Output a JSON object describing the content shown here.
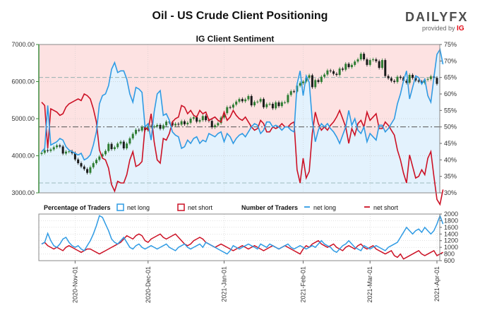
{
  "header": {
    "title": "Oil - US Crude Client Positioning",
    "logo_text_a": "DAILY",
    "logo_text_b": "FX",
    "logo_sub": "provided by",
    "logo_ig": "IG"
  },
  "colors": {
    "long": "#2f9be4",
    "short": "#cc1125",
    "candle_up": "#2e7d32",
    "candle_down": "#1a1a1a",
    "bg_short": "#fde2e2",
    "bg_long": "#e3f2fd",
    "left_axis": "#3d8b3d"
  },
  "chart_data": [
    {
      "type": "line",
      "title": "IG Client Sentiment",
      "x_ticks": [
        "2020-Nov-01",
        "2020-Dec-01",
        "2021-Jan-01",
        "2021-Feb-01",
        "2021-Mar-01",
        "2021-Apr-01"
      ],
      "y_left_ticks": [
        "3000.00",
        "4000.00",
        "5000.00",
        "6000.00",
        "7000.00"
      ],
      "y_left_range": [
        3000,
        7000
      ],
      "y_right_ticks": [
        "30%",
        "35%",
        "40%",
        "45%",
        "50%",
        "55%",
        "60%",
        "65%",
        "70%",
        "75%"
      ],
      "y_right_range": [
        30,
        75
      ],
      "price_candles": {
        "name": "Oil - US Crude",
        "close": [
          4080,
          4150,
          4130,
          4170,
          4230,
          4280,
          4250,
          4060,
          4110,
          4120,
          4070,
          3900,
          3800,
          3710,
          3640,
          3540,
          3690,
          3800,
          3890,
          3980,
          4040,
          4130,
          4320,
          4180,
          4230,
          4330,
          4380,
          4200,
          4330,
          4470,
          4590,
          4700,
          4680,
          4780,
          4690,
          4800,
          4780,
          4790,
          4830,
          4730,
          4820,
          4920,
          4900,
          4820,
          4860,
          4840,
          4930,
          4850,
          4890,
          5000,
          5040,
          4920,
          4960,
          5070,
          4960,
          4940,
          4770,
          4820,
          4880,
          5030,
          5150,
          5310,
          5300,
          5380,
          5460,
          5530,
          5470,
          5520,
          5610,
          5360,
          5450,
          5460,
          5530,
          5310,
          5390,
          5400,
          5280,
          5440,
          5340,
          5440,
          5440,
          5640,
          5740,
          5730,
          5890,
          5960,
          6000,
          6100,
          6170,
          5850,
          6040,
          5990,
          6130,
          6190,
          6300,
          6280,
          6210,
          6180,
          6350,
          6320,
          6480,
          6390,
          6450,
          6540,
          6600,
          6750,
          6600,
          6450,
          6580,
          6600,
          6550,
          6370,
          6580,
          6150,
          6090,
          6020,
          5990,
          6130,
          6100,
          6020,
          5970,
          6180,
          6100,
          6030,
          6000,
          5970,
          6050,
          6070,
          6140,
          6100,
          5940
        ]
      },
      "net_long_pct": [
        42.5,
        43.5,
        56.5,
        44.5,
        45,
        45.5,
        46.5,
        46,
        44,
        43,
        42.5,
        42,
        41.5,
        42,
        40,
        40.5,
        41.5,
        44.5,
        48.5,
        57,
        59.5,
        60,
        62.5,
        67.5,
        69.5,
        66.5,
        67,
        67,
        64.5,
        60,
        57.5,
        62,
        61.5,
        60.5,
        50,
        51,
        46,
        54.5,
        60,
        61,
        53.5,
        54,
        52,
        48.5,
        47.5,
        47,
        43.5,
        44,
        46,
        45,
        46.5,
        47,
        45,
        46,
        45.5,
        48,
        47.5,
        47,
        48,
        48.5,
        45.5,
        48,
        47,
        45,
        46.5,
        47.5,
        48,
        47,
        48.5,
        50,
        51,
        50.5,
        48,
        49,
        51.5,
        51.5,
        50,
        50.5,
        50,
        49,
        50,
        50,
        49,
        48.5,
        63,
        67,
        59.5,
        65.5,
        63.5,
        52,
        45.5,
        49,
        51,
        50,
        51,
        49.5,
        48.5,
        47,
        45,
        47.5,
        50,
        55,
        50.5,
        52.5,
        49,
        48,
        50,
        45.5,
        48,
        47,
        46,
        50.5,
        50.5,
        48.5,
        49.5,
        51,
        52.5,
        57,
        60,
        64,
        67,
        58.5,
        62,
        65.5,
        65,
        63,
        64.5,
        59.5,
        57.5,
        65,
        72,
        73.5,
        69
      ],
      "net_short_pct": [
        57.5,
        56.5,
        43.5,
        55.5,
        55,
        54.5,
        53.5,
        54,
        56,
        57,
        57.5,
        58,
        58.5,
        58,
        60,
        59.5,
        58.5,
        55.5,
        51.5,
        43,
        40.5,
        40,
        37.5,
        32.5,
        30.5,
        33.5,
        33,
        33,
        35.5,
        40,
        42.5,
        38,
        38.5,
        39.5,
        50,
        49,
        54,
        45.5,
        40,
        39,
        46.5,
        46,
        48,
        51.5,
        52.5,
        53,
        56.5,
        56,
        54,
        55,
        53.5,
        53,
        55,
        54,
        54.5,
        52,
        52.5,
        53,
        52,
        51.5,
        54.5,
        52,
        53,
        55,
        53.5,
        52.5,
        52,
        53,
        51.5,
        50,
        49,
        49.5,
        52,
        51,
        48.5,
        48.5,
        50,
        49.5,
        50,
        51,
        50,
        50,
        51,
        51.5,
        37,
        33,
        40.5,
        34.5,
        36.5,
        48,
        54.5,
        51,
        49,
        50,
        49,
        50.5,
        51.5,
        53,
        55,
        52.5,
        50,
        45,
        49.5,
        47.5,
        51,
        52,
        50,
        54.5,
        52,
        53,
        54,
        49.5,
        49.5,
        51.5,
        50.5,
        49,
        47.5,
        43,
        40,
        36,
        33,
        41.5,
        38,
        34.5,
        35,
        37,
        35.5,
        40.5,
        42.5,
        35,
        28,
        26.5,
        31
      ]
    },
    {
      "type": "line",
      "legend_pct_title": "Percentage of Traders",
      "legend_num_title": "Number of Traders",
      "legend_long": "net long",
      "legend_short": "net short",
      "y_right_ticks": [
        "600",
        "800",
        "1000",
        "1200",
        "1400",
        "1600",
        "1800",
        "2000"
      ],
      "y_right_range": [
        600,
        2000
      ],
      "traders_long": [
        1100,
        1150,
        1420,
        1200,
        1050,
        1000,
        1100,
        1250,
        1300,
        1150,
        1050,
        1000,
        1050,
        950,
        900,
        1050,
        1200,
        1400,
        1650,
        1950,
        1900,
        1700,
        1500,
        1250,
        1150,
        1100,
        1200,
        1300,
        1150,
        1000,
        950,
        1050,
        1100,
        1000,
        950,
        1000,
        1050,
        1000,
        950,
        1000,
        1050,
        1100,
        1000,
        950,
        900,
        1000,
        1050,
        1100,
        1000,
        950,
        1000,
        1050,
        1100,
        1000,
        1150,
        1100,
        1050,
        1000,
        950,
        900,
        850,
        800,
        900,
        1050,
        1000,
        950,
        1000,
        1050,
        1100,
        1050,
        1000,
        950,
        1100,
        1050,
        1000,
        1100,
        1050,
        1000,
        950,
        1000,
        1050,
        1100,
        1000,
        950,
        1000,
        1050,
        1000,
        950,
        1000,
        1050,
        1000,
        1100,
        1200,
        1100,
        1050,
        1000,
        900,
        850,
        950,
        1050,
        1100,
        1200,
        1100,
        1000,
        950,
        900,
        1050,
        1000,
        950,
        1000,
        1050,
        1000,
        950,
        900,
        1000,
        1050,
        1100,
        1150,
        1300,
        1450,
        1600,
        1500,
        1400,
        1500,
        1550,
        1450,
        1600,
        1500,
        1400,
        1500,
        1700,
        1950,
        1700
      ],
      "traders_short": [
        1100,
        1150,
        1050,
        1000,
        950,
        1000,
        950,
        900,
        1000,
        1050,
        1000,
        950,
        900,
        850,
        900,
        950,
        950,
        900,
        850,
        800,
        850,
        900,
        950,
        1000,
        1050,
        1100,
        1150,
        1250,
        1350,
        1300,
        1250,
        1350,
        1400,
        1350,
        1200,
        1150,
        1250,
        1300,
        1350,
        1400,
        1300,
        1250,
        1300,
        1350,
        1400,
        1300,
        1200,
        1100,
        1050,
        1100,
        1200,
        1250,
        1300,
        1250,
        1150,
        1100,
        1050,
        1000,
        1050,
        1100,
        1050,
        1000,
        950,
        900,
        950,
        1000,
        1050,
        1000,
        950,
        1000,
        1050,
        1000,
        950,
        900,
        950,
        1000,
        1050,
        1000,
        950,
        1000,
        1050,
        1000,
        950,
        900,
        850,
        800,
        950,
        1050,
        1000,
        1100,
        1150,
        1200,
        1100,
        1050,
        1000,
        1050,
        1100,
        1000,
        950,
        900,
        1000,
        1050,
        1000,
        950,
        1050,
        1100,
        1000,
        950,
        1000,
        1050,
        950,
        900,
        850,
        800,
        850,
        900,
        750,
        700,
        800,
        650,
        700,
        750,
        800,
        850,
        900,
        800,
        750,
        800,
        850,
        900,
        750,
        800,
        850
      ]
    }
  ]
}
